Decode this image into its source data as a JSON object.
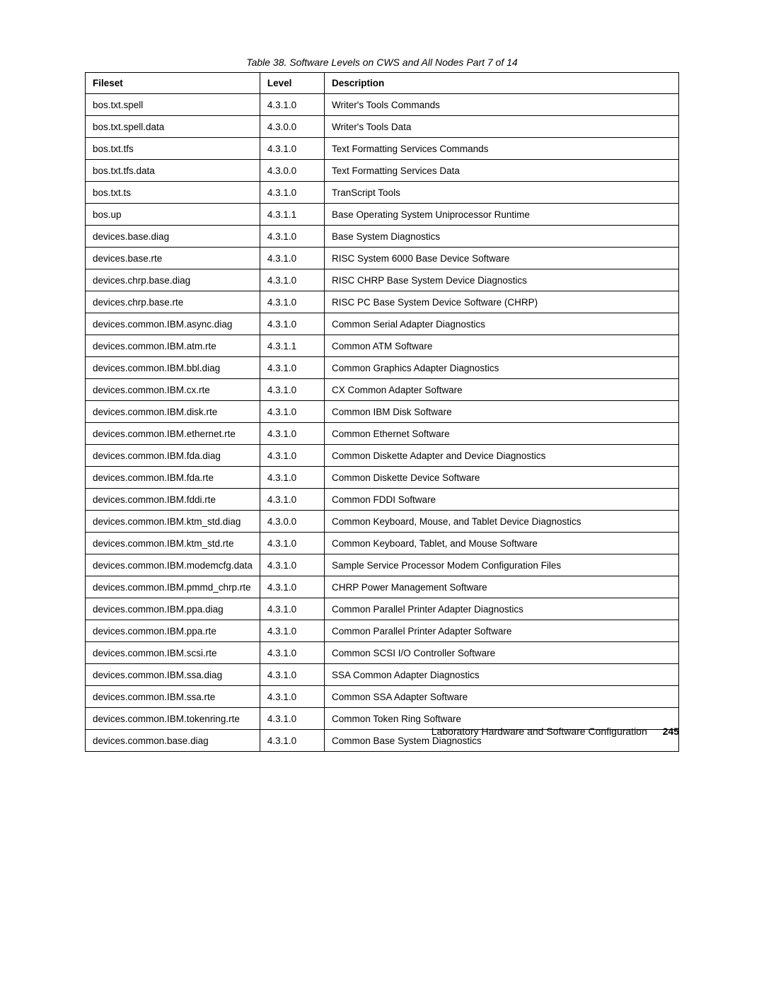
{
  "caption": "Table 38.  Software Levels on CWS and All Nodes Part 7 of 14",
  "columns": [
    "Fileset",
    "Level",
    "Description"
  ],
  "rows": [
    [
      "bos.txt.spell",
      "4.3.1.0",
      "Writer's Tools Commands"
    ],
    [
      "bos.txt.spell.data",
      "4.3.0.0",
      "Writer's Tools Data"
    ],
    [
      "bos.txt.tfs",
      "4.3.1.0",
      "Text Formatting Services Commands"
    ],
    [
      "bos.txt.tfs.data",
      "4.3.0.0",
      "Text Formatting Services Data"
    ],
    [
      "bos.txt.ts",
      "4.3.1.0",
      "TranScript Tools"
    ],
    [
      "bos.up",
      "4.3.1.1",
      "Base Operating System Uniprocessor Runtime"
    ],
    [
      "devices.base.diag",
      "4.3.1.0",
      "Base System Diagnostics"
    ],
    [
      "devices.base.rte",
      "4.3.1.0",
      "RISC System 6000 Base Device Software"
    ],
    [
      "devices.chrp.base.diag",
      "4.3.1.0",
      "RISC CHRP Base System Device Diagnostics"
    ],
    [
      "devices.chrp.base.rte",
      "4.3.1.0",
      "RISC PC Base System Device Software (CHRP)"
    ],
    [
      "devices.common.IBM.async.diag",
      "4.3.1.0",
      "Common Serial Adapter Diagnostics"
    ],
    [
      "devices.common.IBM.atm.rte",
      "4.3.1.1",
      "Common ATM Software"
    ],
    [
      "devices.common.IBM.bbl.diag",
      "4.3.1.0",
      "Common Graphics Adapter Diagnostics"
    ],
    [
      "devices.common.IBM.cx.rte",
      "4.3.1.0",
      "CX Common Adapter Software"
    ],
    [
      "devices.common.IBM.disk.rte",
      "4.3.1.0",
      "Common IBM Disk Software"
    ],
    [
      "devices.common.IBM.ethernet.rte",
      "4.3.1.0",
      "Common Ethernet Software"
    ],
    [
      "devices.common.IBM.fda.diag",
      "4.3.1.0",
      "Common Diskette Adapter and Device Diagnostics"
    ],
    [
      "devices.common.IBM.fda.rte",
      "4.3.1.0",
      "Common Diskette Device Software"
    ],
    [
      "devices.common.IBM.fddi.rte",
      "4.3.1.0",
      "Common FDDI Software"
    ],
    [
      "devices.common.IBM.ktm_std.diag",
      "4.3.0.0",
      "Common Keyboard, Mouse, and Tablet Device Diagnostics"
    ],
    [
      "devices.common.IBM.ktm_std.rte",
      "4.3.1.0",
      "Common Keyboard, Tablet, and Mouse Software"
    ],
    [
      "devices.common.IBM.modemcfg.data",
      "4.3.1.0",
      "Sample Service Processor Modem Configuration Files"
    ],
    [
      "devices.common.IBM.pmmd_chrp.rte",
      "4.3.1.0",
      "CHRP Power Management Software"
    ],
    [
      "devices.common.IBM.ppa.diag",
      "4.3.1.0",
      "Common Parallel Printer Adapter Diagnostics"
    ],
    [
      "devices.common.IBM.ppa.rte",
      "4.3.1.0",
      "Common Parallel Printer Adapter Software"
    ],
    [
      "devices.common.IBM.scsi.rte",
      "4.3.1.0",
      "Common SCSI I/O Controller Software"
    ],
    [
      "devices.common.IBM.ssa.diag",
      "4.3.1.0",
      "SSA Common Adapter Diagnostics"
    ],
    [
      "devices.common.IBM.ssa.rte",
      "4.3.1.0",
      "Common SSA Adapter Software"
    ],
    [
      "devices.common.IBM.tokenring.rte",
      "4.3.1.0",
      "Common Token Ring Software"
    ],
    [
      "devices.common.base.diag",
      "4.3.1.0",
      "Common Base System Diagnostics"
    ]
  ],
  "footer": {
    "text": "Laboratory Hardware and Software Configuration",
    "page": "245"
  }
}
